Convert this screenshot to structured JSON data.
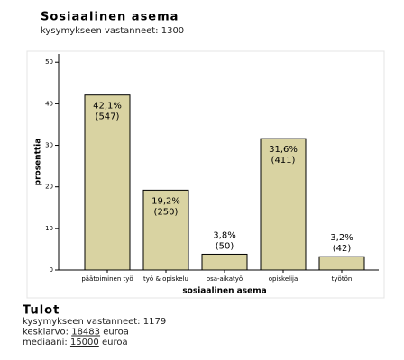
{
  "chart_data": {
    "type": "bar",
    "title": "Sosiaalinen asema",
    "subtitle": "kysymykseen vastanneet: 1300",
    "categories": [
      "päätoiminen työ",
      "työ & opiskelu",
      "osa-aikatyö",
      "opiskelija",
      "työtön"
    ],
    "values": [
      42.1,
      19.2,
      3.8,
      31.6,
      3.2
    ],
    "value_labels": [
      "42,1%",
      "19,2%",
      "3,8%",
      "31,6%",
      "3,2%"
    ],
    "count_labels": [
      "(547)",
      "(250)",
      "(50)",
      "(411)",
      "(42)"
    ],
    "color": "#d9d3a2",
    "ylim": [
      0,
      52
    ],
    "yticks": [
      0,
      10,
      20,
      30,
      40,
      50
    ],
    "ylabel": "prosenttia",
    "xlabel": "sosiaalinen asema"
  },
  "tulot": {
    "title": "Tulot",
    "lines": [
      {
        "label": "kysymykseen vastanneet:",
        "value": "1179",
        "unit": ""
      },
      {
        "label": "keskiarvo:",
        "value": "18483",
        "unit": "euroa"
      },
      {
        "label": "mediaani:",
        "value": "15000",
        "unit": "euroa"
      }
    ]
  }
}
